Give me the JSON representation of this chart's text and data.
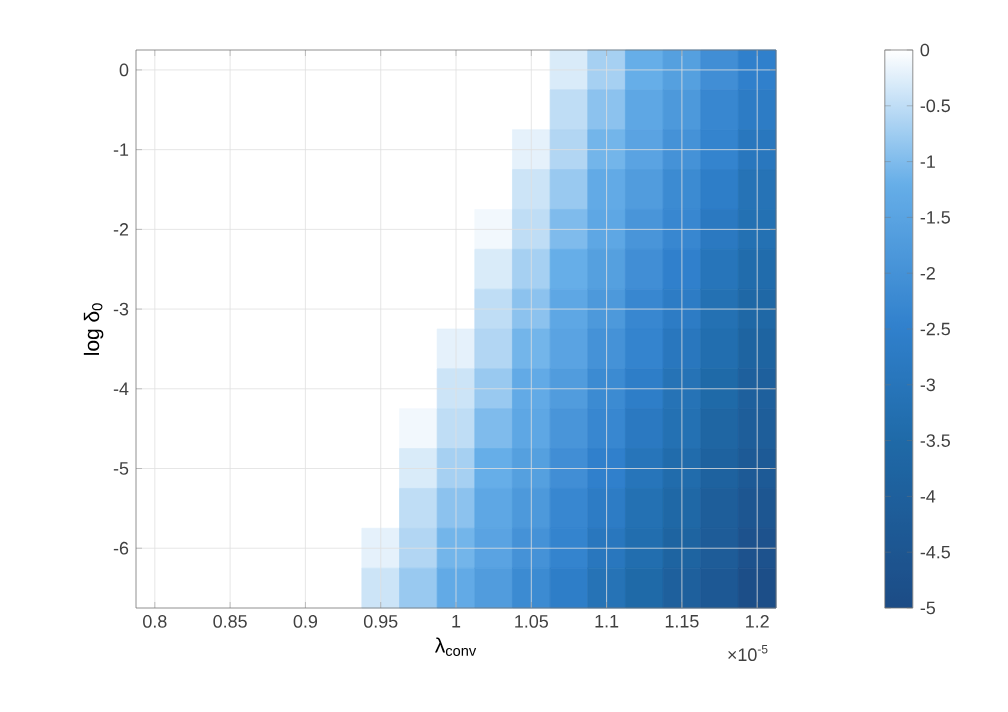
{
  "chart_data": {
    "type": "heatmap",
    "xlabel": "λ$_{conv}$",
    "ylabel": "log δ$_{0}$",
    "annotations": [
      "×10$^{-5}$"
    ],
    "categories": [
      "0.8",
      null,
      "0.85",
      null,
      "0.9",
      null,
      "0.95",
      null,
      "1",
      null,
      "1.05",
      null,
      "1.1",
      null,
      "1.15",
      null,
      "1.2"
    ],
    "y_categories": [
      "0",
      null,
      "-1",
      null,
      "-2",
      null,
      "-3",
      null,
      "-4",
      null,
      "-5",
      null,
      "-6",
      null
    ],
    "clim": [
      -5,
      0
    ],
    "cticks": [
      -5,
      -4.5,
      -4,
      -3.5,
      -3,
      -2.5,
      -2,
      -1.5,
      -1,
      -0.5,
      0
    ],
    "grid": true,
    "cells": [
      [
        0,
        0,
        0,
        0,
        0,
        0,
        0,
        0,
        0,
        0,
        0,
        -0.3,
        -0.7,
        -1.2,
        -1.6,
        -2.1,
        -2.5
      ],
      [
        0,
        0,
        0,
        0,
        0,
        0,
        0,
        0,
        0,
        0,
        0,
        -0.5,
        -0.9,
        -1.4,
        -1.8,
        -2.3,
        -2.7
      ],
      [
        0,
        0,
        0,
        0,
        0,
        0,
        0,
        0,
        0,
        0,
        -0.2,
        -0.6,
        -1.1,
        -1.5,
        -2.0,
        -2.4,
        -2.9
      ],
      [
        0,
        0,
        0,
        0,
        0,
        0,
        0,
        0,
        0,
        0,
        -0.4,
        -0.8,
        -1.3,
        -1.7,
        -2.2,
        -2.6,
        -3.1
      ],
      [
        0,
        0,
        0,
        0,
        0,
        0,
        0,
        0,
        0,
        -0.1,
        -0.5,
        -1.0,
        -1.4,
        -1.9,
        -2.3,
        -2.8,
        -3.2
      ],
      [
        0,
        0,
        0,
        0,
        0,
        0,
        0,
        0,
        0,
        -0.3,
        -0.7,
        -1.2,
        -1.6,
        -2.1,
        -2.5,
        -3.0,
        -3.4
      ],
      [
        0,
        0,
        0,
        0,
        0,
        0,
        0,
        0,
        0,
        -0.5,
        -0.9,
        -1.4,
        -1.8,
        -2.3,
        -2.7,
        -3.2,
        -3.6
      ],
      [
        0,
        0,
        0,
        0,
        0,
        0,
        0,
        0,
        -0.2,
        -0.6,
        -1.1,
        -1.5,
        -2.0,
        -2.4,
        -2.9,
        -3.3,
        -3.8
      ],
      [
        0,
        0,
        0,
        0,
        0,
        0,
        0,
        0,
        -0.4,
        -0.8,
        -1.3,
        -1.7,
        -2.2,
        -2.6,
        -3.1,
        -3.5,
        -4.0
      ],
      [
        0,
        0,
        0,
        0,
        0,
        0,
        0,
        -0.1,
        -0.5,
        -1.0,
        -1.4,
        -1.9,
        -2.3,
        -2.8,
        -3.2,
        -3.7,
        -4.1
      ],
      [
        0,
        0,
        0,
        0,
        0,
        0,
        0,
        -0.3,
        -0.7,
        -1.2,
        -1.6,
        -2.1,
        -2.5,
        -3.0,
        -3.4,
        -3.9,
        -4.3
      ],
      [
        0,
        0,
        0,
        0,
        0,
        0,
        0,
        -0.5,
        -0.9,
        -1.4,
        -1.8,
        -2.3,
        -2.7,
        -3.2,
        -3.6,
        -4.1,
        -4.5
      ],
      [
        0,
        0,
        0,
        0,
        0,
        0,
        -0.2,
        -0.6,
        -1.1,
        -1.5,
        -2.0,
        -2.4,
        -2.9,
        -3.3,
        -3.8,
        -4.2,
        -4.7
      ],
      [
        0,
        0,
        0,
        0,
        0,
        0,
        -0.4,
        -0.8,
        -1.3,
        -1.7,
        -2.2,
        -2.6,
        -3.1,
        -3.5,
        -4.0,
        -4.4,
        -4.9
      ]
    ]
  }
}
